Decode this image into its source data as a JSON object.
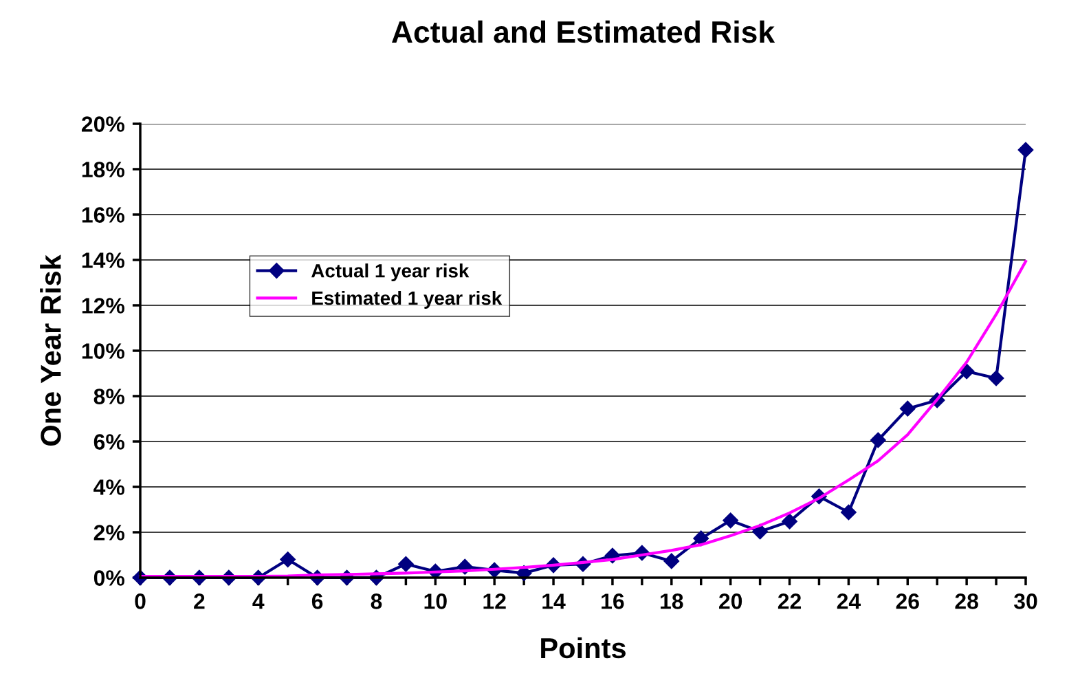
{
  "chart_data": {
    "type": "line",
    "title": "Actual and Estimated Risk",
    "xlabel": "Points",
    "ylabel": "One Year Risk",
    "x": [
      0,
      1,
      2,
      3,
      4,
      5,
      6,
      7,
      8,
      9,
      10,
      11,
      12,
      13,
      14,
      15,
      16,
      17,
      18,
      19,
      20,
      21,
      22,
      23,
      24,
      25,
      26,
      27,
      28,
      29,
      30
    ],
    "series": [
      {
        "name": "Actual 1 year risk",
        "color": "#000080",
        "marker": "diamond",
        "values": [
          0,
          0,
          0,
          0,
          0,
          0.8,
          0,
          0,
          0,
          0.6,
          0.27,
          0.48,
          0.33,
          0.2,
          0.55,
          0.6,
          0.97,
          1.09,
          0.73,
          1.73,
          2.52,
          2.03,
          2.48,
          3.58,
          2.88,
          6.06,
          7.45,
          7.82,
          9.09,
          8.79,
          18.85
        ]
      },
      {
        "name": "Estimated 1 year risk",
        "color": "#ff00ff",
        "marker": "none",
        "values": [
          0.06,
          0.06,
          0.06,
          0.06,
          0.06,
          0.07,
          0.12,
          0.14,
          0.17,
          0.2,
          0.25,
          0.3,
          0.37,
          0.45,
          0.55,
          0.67,
          0.8,
          1.0,
          1.2,
          1.45,
          1.85,
          2.3,
          2.85,
          3.5,
          4.3,
          5.15,
          6.3,
          7.85,
          9.5,
          11.6,
          13.94
        ]
      }
    ],
    "xlim": [
      0,
      30
    ],
    "xticks": [
      0,
      2,
      4,
      6,
      8,
      10,
      12,
      14,
      16,
      18,
      20,
      22,
      24,
      26,
      28,
      30
    ],
    "ylim": [
      0,
      20
    ],
    "yticks": [
      {
        "value": 0,
        "label": "0%"
      },
      {
        "value": 2,
        "label": "2%"
      },
      {
        "value": 4,
        "label": "4%"
      },
      {
        "value": 6,
        "label": "6%"
      },
      {
        "value": 8,
        "label": "8%"
      },
      {
        "value": 10,
        "label": "10%"
      },
      {
        "value": 12,
        "label": "12%"
      },
      {
        "value": 14,
        "label": "14%"
      },
      {
        "value": 16,
        "label": "16%"
      },
      {
        "value": 18,
        "label": "18%"
      },
      {
        "value": 20,
        "label": "20%"
      }
    ],
    "grid": "y",
    "legend": "top left",
    "line_style": "solid"
  }
}
